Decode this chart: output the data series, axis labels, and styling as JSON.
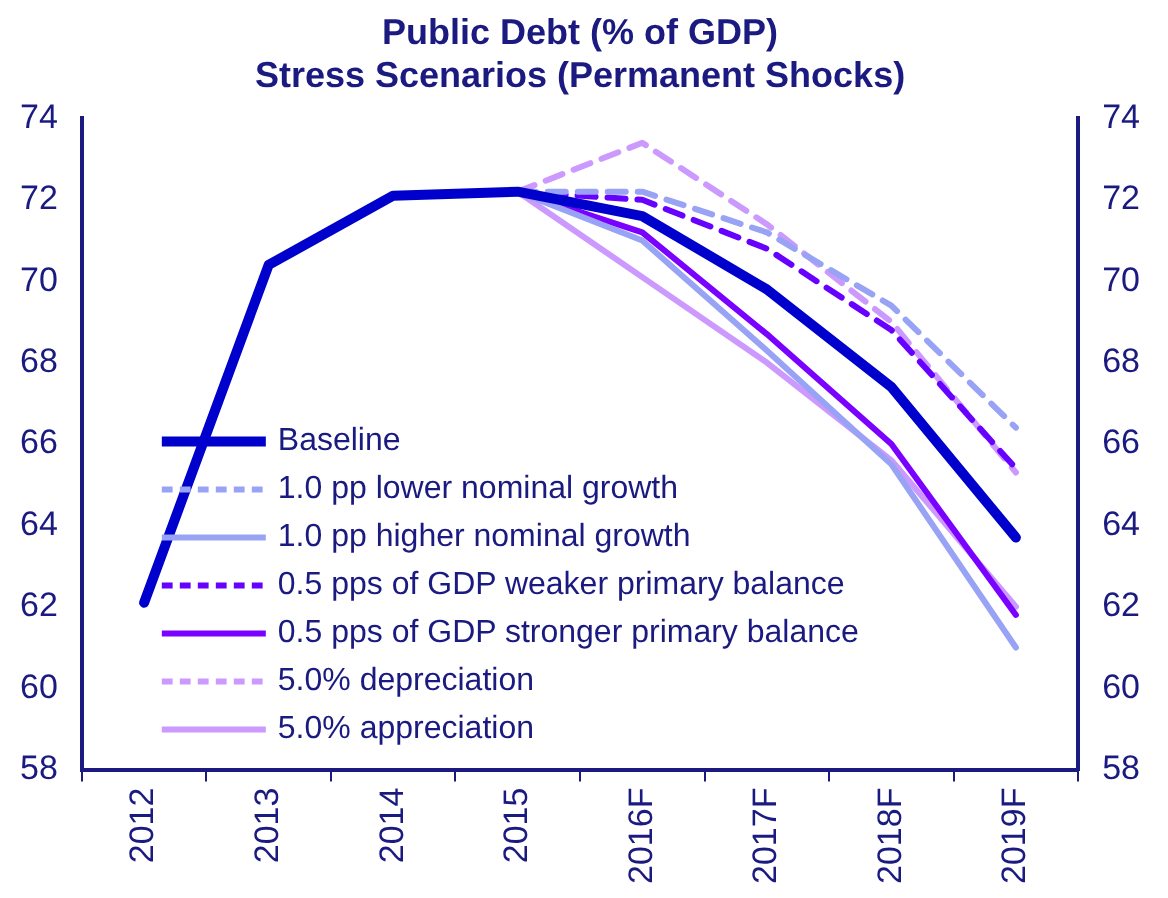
{
  "chart_data": {
    "type": "line",
    "title": "Public Debt (% of GDP)",
    "subtitle": "Stress Scenarios (Permanent Shocks)",
    "categories": [
      "2012",
      "2013",
      "2014",
      "2015",
      "2016F",
      "2017F",
      "2018F",
      "2019F"
    ],
    "series": [
      {
        "name": "Baseline",
        "color": "#0000cc",
        "line_style": "solid",
        "values": [
          62.1,
          70.4,
          72.1,
          72.2,
          71.6,
          69.8,
          67.4,
          63.7
        ]
      },
      {
        "name": "1.0 pp lower nominal growth",
        "color": "#99a3f5",
        "line_style": "dashed",
        "values": [
          null,
          null,
          null,
          72.2,
          72.2,
          71.2,
          69.4,
          66.4
        ]
      },
      {
        "name": "1.0 pp higher nominal growth",
        "color": "#99a3f5",
        "line_style": "solid",
        "values": [
          null,
          null,
          null,
          72.2,
          71.0,
          68.3,
          65.5,
          61.0
        ]
      },
      {
        "name": "0.5 pps of GDP weaker primary balance",
        "color": "#6600ff",
        "line_style": "dashed",
        "values": [
          null,
          null,
          null,
          72.2,
          72.0,
          70.8,
          68.8,
          65.4
        ]
      },
      {
        "name": "0.5 pps of GDP stronger primary balance",
        "color": "#7a00ff",
        "line_style": "solid",
        "values": [
          null,
          null,
          null,
          72.2,
          71.2,
          68.7,
          66.0,
          61.8
        ]
      },
      {
        "name": "5.0% depreciation",
        "color": "#cc99ff",
        "line_style": "dashed",
        "values": [
          null,
          null,
          null,
          72.2,
          73.4,
          71.4,
          69.0,
          65.3
        ]
      },
      {
        "name": "5.0% appreciation",
        "color": "#cc99ff",
        "line_style": "solid",
        "values": [
          null,
          null,
          null,
          72.2,
          70.1,
          68.0,
          65.6,
          62.0
        ]
      }
    ],
    "ylim": [
      58,
      74
    ],
    "yticks": [
      58,
      60,
      62,
      64,
      66,
      68,
      70,
      72,
      74
    ],
    "y2lim": [
      58,
      74
    ],
    "y2ticks": [
      58,
      60,
      62,
      64,
      66,
      68,
      70,
      72,
      74
    ],
    "grid": false,
    "legend": "bottom left",
    "marker": "none"
  }
}
